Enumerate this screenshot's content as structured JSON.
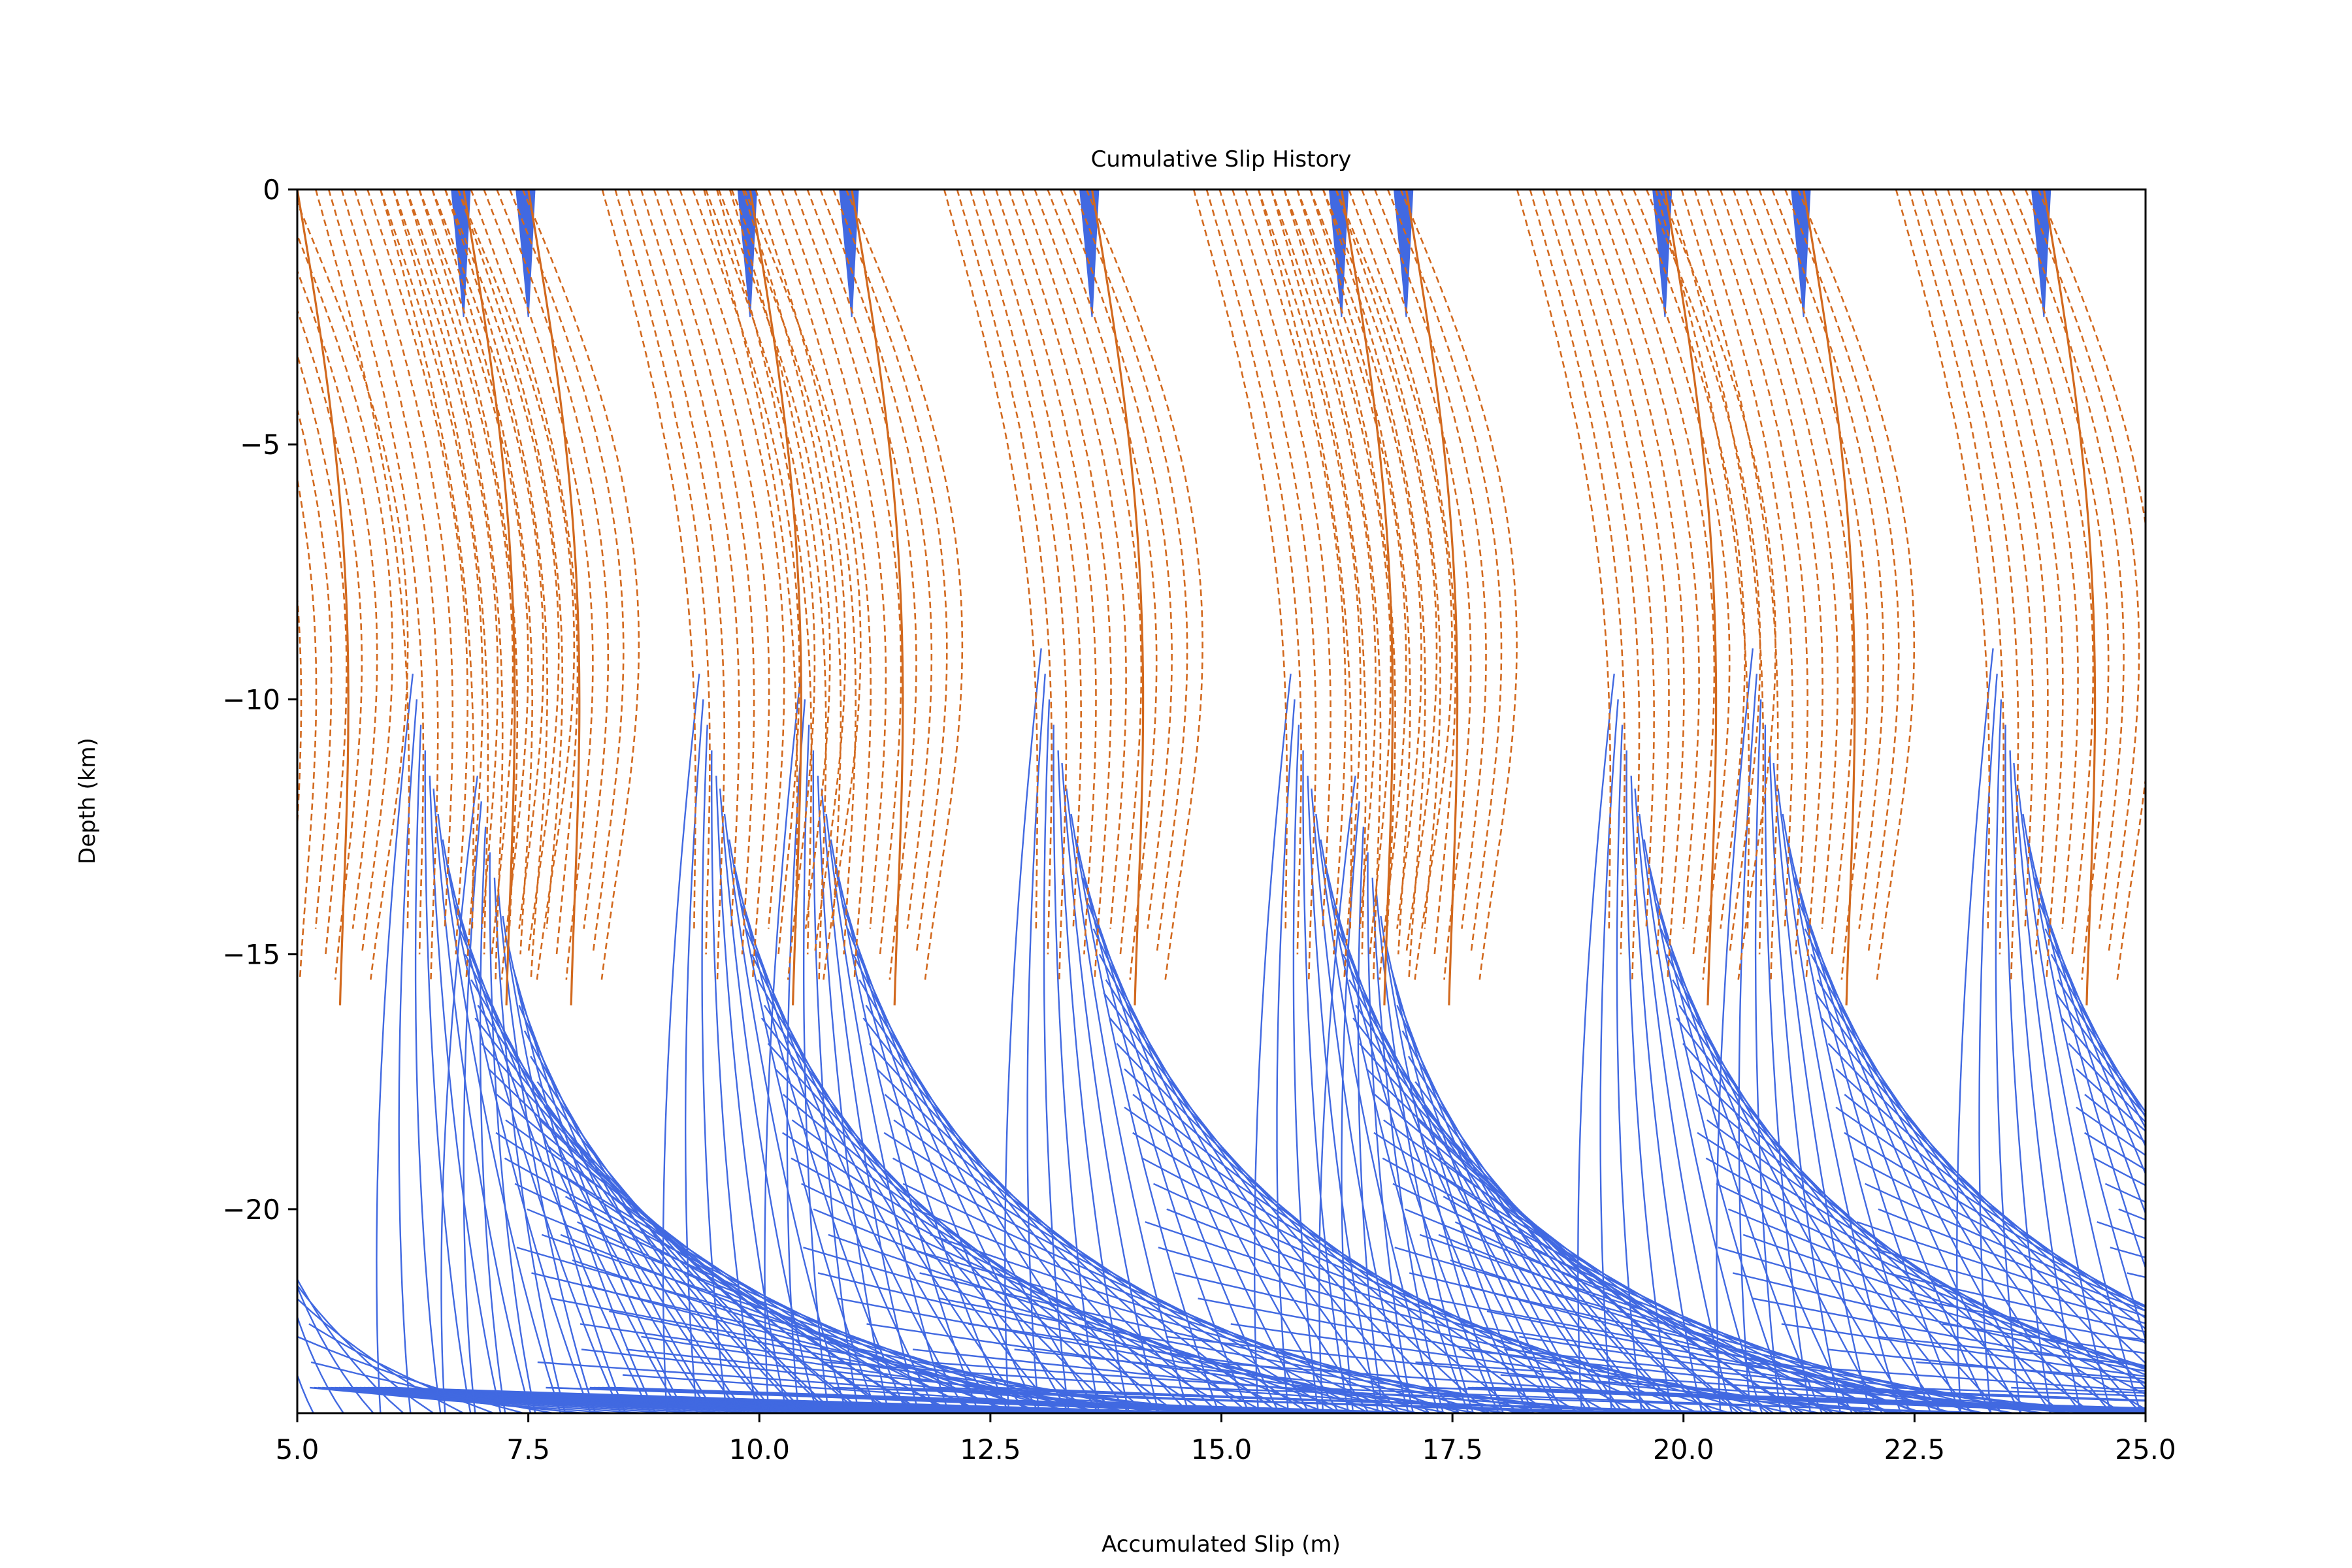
{
  "chart_data": {
    "type": "line",
    "title": "Cumulative Slip History",
    "xlabel": "Accumulated Slip (m)",
    "ylabel": "Depth (km)",
    "xlim": [
      5.0,
      25.0
    ],
    "ylim": [
      -24,
      0
    ],
    "xticks": [
      5.0,
      7.5,
      10.0,
      12.5,
      15.0,
      17.5,
      20.0,
      22.5,
      25.0
    ],
    "xtick_labels": [
      "5.0",
      "7.5",
      "10.0",
      "12.5",
      "15.0",
      "17.5",
      "20.0",
      "22.5",
      "25.0"
    ],
    "yticks": [
      0,
      -5,
      -10,
      -15,
      -20
    ],
    "ytick_labels": [
      "0",
      "−5",
      "−10",
      "−15",
      "−20"
    ],
    "grid": false,
    "legend": "none",
    "colors": {
      "interseismic": "#4169e1",
      "coseismic": "#d2691e"
    },
    "line_styles": {
      "interseismic": "solid",
      "coseismic": "dashed"
    },
    "event_slips_m": [
      6.8,
      7.5,
      9.9,
      11.0,
      13.6,
      16.3,
      17.0,
      19.8,
      21.3,
      23.9
    ],
    "event_nucleation_depths_km": [
      -9.5,
      -11.5,
      -9.5,
      -9.5,
      -9.0,
      -9.5,
      -11.5,
      -9.5,
      -9.0,
      -9.0
    ]
  }
}
